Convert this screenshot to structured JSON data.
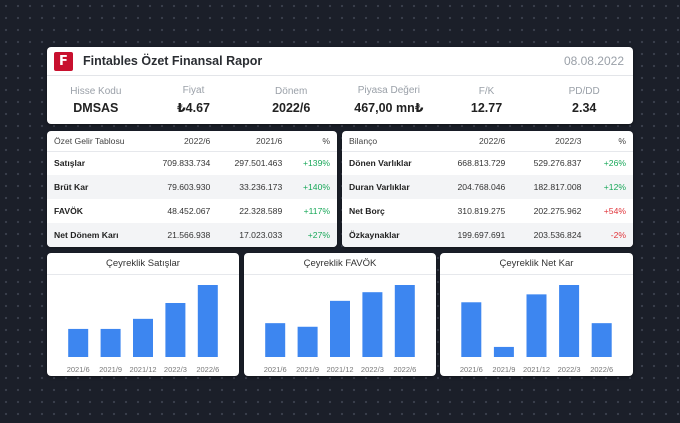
{
  "header": {
    "logo_letter": "F",
    "title": "Fintables Özet Finansal Rapor",
    "date": "08.08.2022",
    "metrics": [
      {
        "label": "Hisse Kodu",
        "value": "DMSAS"
      },
      {
        "label": "Fiyat",
        "value": "₺4.67"
      },
      {
        "label": "Dönem",
        "value": "2022/6"
      },
      {
        "label": "Piyasa Değeri",
        "value": "467,00 mn₺"
      },
      {
        "label": "F/K",
        "value": "12.77"
      },
      {
        "label": "PD/DD",
        "value": "2.34"
      }
    ]
  },
  "income_table": {
    "headers": [
      "Özet Gelir Tablosu",
      "2022/6",
      "2021/6",
      "%"
    ],
    "rows": [
      {
        "name": "Satışlar",
        "a": "709.833.734",
        "b": "297.501.463",
        "pct": "+139%"
      },
      {
        "name": "Brüt Kar",
        "a": "79.603.930",
        "b": "33.236.173",
        "pct": "+140%"
      },
      {
        "name": "FAVÖK",
        "a": "48.452.067",
        "b": "22.328.589",
        "pct": "+117%"
      },
      {
        "name": "Net Dönem Karı",
        "a": "21.566.938",
        "b": "17.023.033",
        "pct": "+27%"
      }
    ]
  },
  "balance_table": {
    "headers": [
      "Bilanço",
      "2022/6",
      "2022/3",
      "%"
    ],
    "rows": [
      {
        "name": "Dönen Varlıklar",
        "a": "668.813.729",
        "b": "529.276.837",
        "pct": "+26%"
      },
      {
        "name": "Duran Varlıklar",
        "a": "204.768.046",
        "b": "182.817.008",
        "pct": "+12%"
      },
      {
        "name": "Net Borç",
        "a": "310.819.275",
        "b": "202.275.962",
        "pct": "+54%"
      },
      {
        "name": "Özkaynaklar",
        "a": "199.697.691",
        "b": "203.536.824",
        "pct": "-2%"
      }
    ]
  },
  "colors": {
    "bar": "#3d86f0",
    "positive": "#1aa85a",
    "negative": "#e0353b",
    "logo": "#c8102e"
  },
  "chart_data": [
    {
      "type": "bar",
      "title": "Çeyreklik Satışlar",
      "categories": [
        "2021/6",
        "2021/9",
        "2021/12",
        "2022/3",
        "2022/6"
      ],
      "values": [
        39,
        39,
        53,
        75,
        100
      ],
      "ylim": [
        0,
        100
      ],
      "grid": false
    },
    {
      "type": "bar",
      "title": "Çeyreklik FAVÖK",
      "categories": [
        "2021/6",
        "2021/9",
        "2021/12",
        "2022/3",
        "2022/6"
      ],
      "values": [
        47,
        42,
        78,
        90,
        100
      ],
      "ylim": [
        0,
        100
      ],
      "grid": false
    },
    {
      "type": "bar",
      "title": "Çeyreklik Net Kar",
      "categories": [
        "2021/6",
        "2021/9",
        "2021/12",
        "2022/3",
        "2022/6"
      ],
      "values": [
        76,
        14,
        87,
        100,
        47
      ],
      "ylim": [
        0,
        100
      ],
      "grid": false
    }
  ]
}
